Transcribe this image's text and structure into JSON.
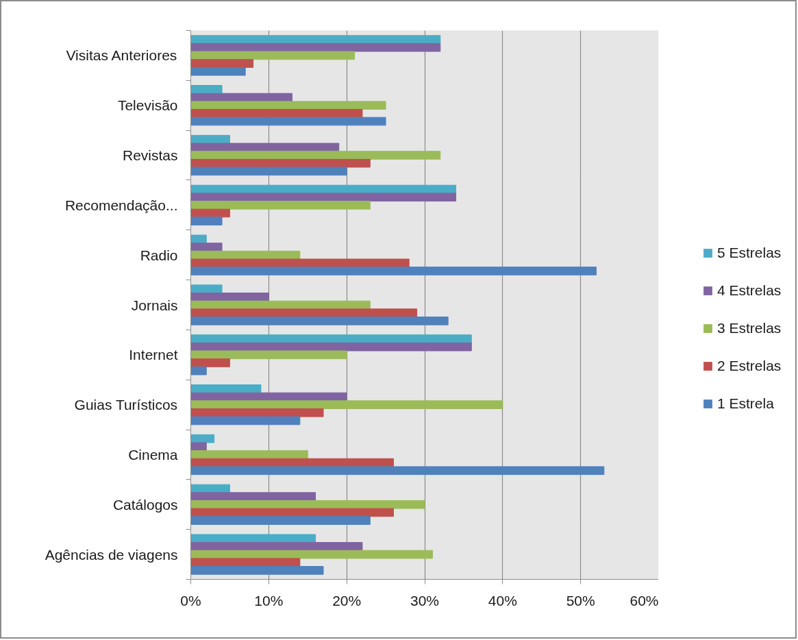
{
  "chart_data": {
    "type": "bar",
    "orientation": "horizontal",
    "categories": [
      "Visitas Anteriores",
      "Televisão",
      "Revistas",
      "Recomendação...",
      "Radio",
      "Jornais",
      "Internet",
      "Guias Turísticos",
      "Cinema",
      "Catálogos",
      "Agências de viagens"
    ],
    "series": [
      {
        "name": "5 Estrelas",
        "color": "#4bacc6",
        "values": [
          32,
          4,
          5,
          34,
          2,
          4,
          36,
          9,
          3,
          5,
          16
        ]
      },
      {
        "name": "4 Estrelas",
        "color": "#8064a2",
        "values": [
          32,
          13,
          19,
          34,
          4,
          10,
          36,
          20,
          2,
          16,
          22
        ]
      },
      {
        "name": "3 Estrelas",
        "color": "#9bbb59",
        "values": [
          21,
          25,
          32,
          23,
          14,
          23,
          20,
          40,
          15,
          30,
          31
        ]
      },
      {
        "name": "2 Estrelas",
        "color": "#c0504d",
        "values": [
          8,
          22,
          23,
          5,
          28,
          29,
          5,
          17,
          26,
          26,
          14
        ]
      },
      {
        "name": "1 Estrela",
        "color": "#4f81bd",
        "values": [
          7,
          25,
          20,
          4,
          52,
          33,
          2,
          14,
          53,
          23,
          17
        ]
      }
    ],
    "xlim": [
      0,
      60
    ],
    "xticks": [
      {
        "value": 0,
        "label": "0%"
      },
      {
        "value": 10,
        "label": "10%"
      },
      {
        "value": 20,
        "label": "20%"
      },
      {
        "value": 30,
        "label": "30%"
      },
      {
        "value": 40,
        "label": "40%"
      },
      {
        "value": 50,
        "label": "50%"
      },
      {
        "value": 60,
        "label": "60%"
      }
    ],
    "grid": "x",
    "legend": "right"
  }
}
